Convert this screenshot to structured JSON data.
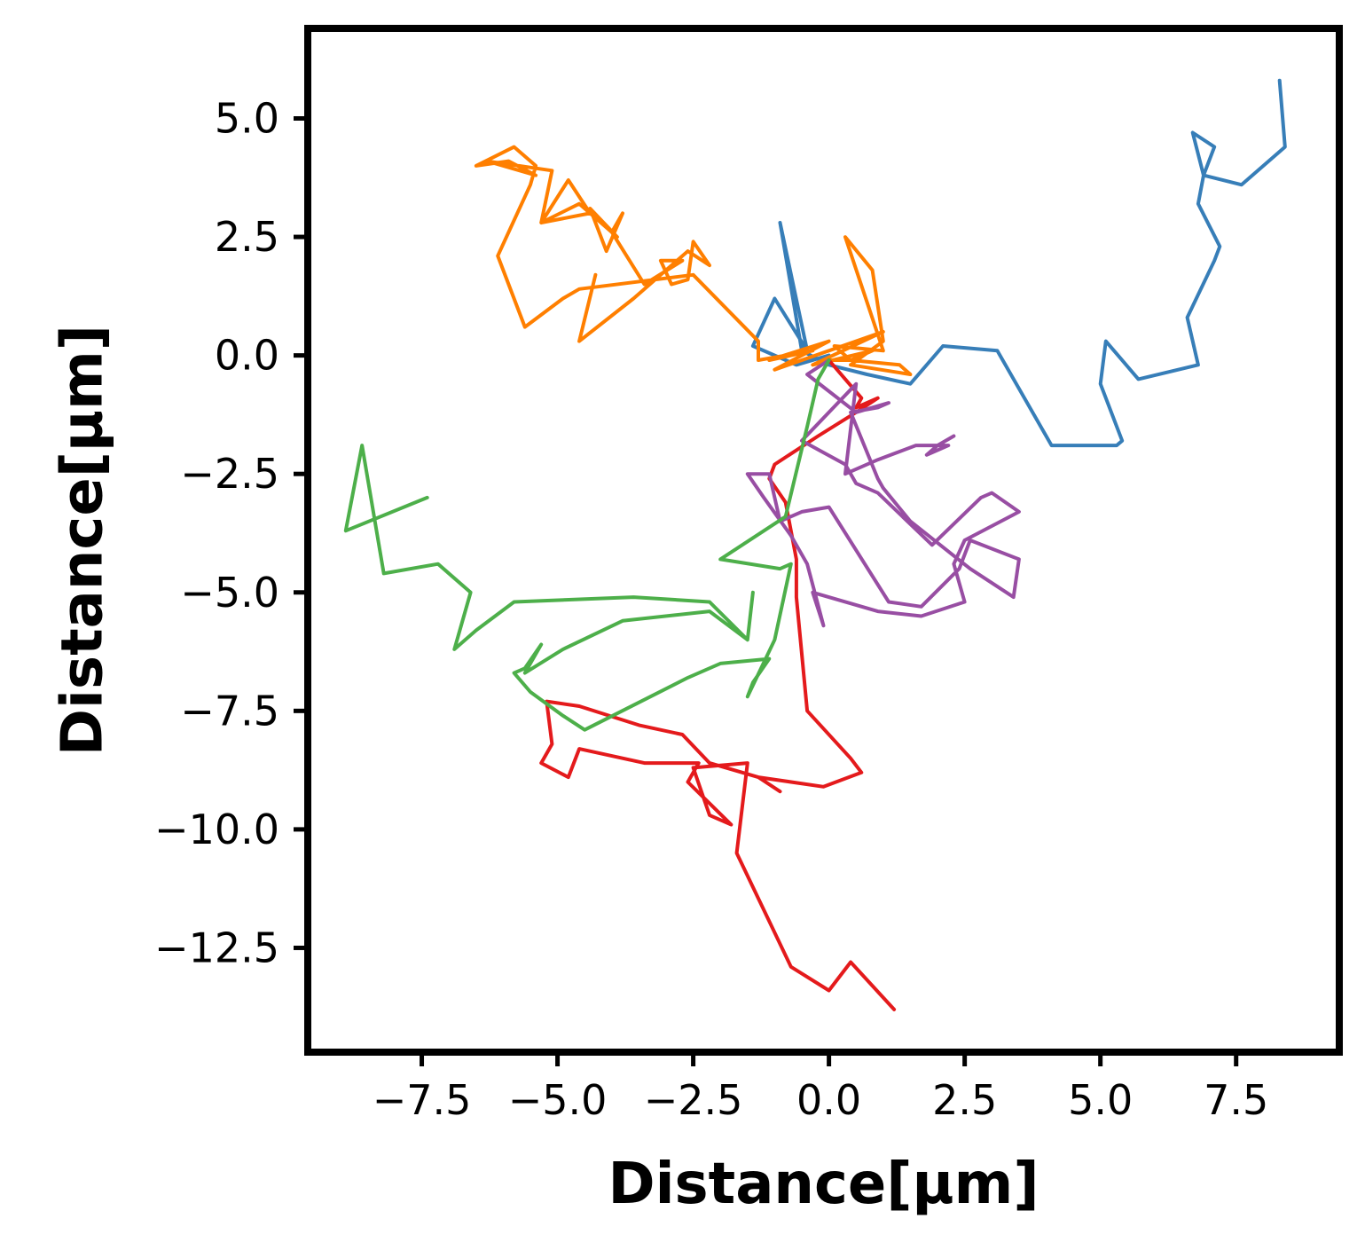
{
  "chart_data": {
    "type": "line",
    "title": "",
    "xlabel": "Distance[μm]",
    "ylabel": "Distance[μm]",
    "xlim": [
      -9.6,
      9.4
    ],
    "ylim": [
      -14.7,
      6.9
    ],
    "xticks": [
      -7.5,
      -5.0,
      -2.5,
      0.0,
      2.5,
      5.0,
      7.5
    ],
    "yticks": [
      5.0,
      2.5,
      0.0,
      -2.5,
      -5.0,
      -7.5,
      -10.0,
      -12.5
    ],
    "xtick_labels": [
      "−7.5",
      "−5.0",
      "−2.5",
      "0.0",
      "2.5",
      "5.0",
      "7.5"
    ],
    "ytick_labels": [
      "5.0",
      "2.5",
      "0.0",
      "−2.5",
      "−5.0",
      "−7.5",
      "−10.0",
      "−12.5"
    ],
    "grid": false,
    "legend": "none",
    "series": [
      {
        "color": "#377eb8",
        "points": [
          [
            8.3,
            5.8
          ],
          [
            8.4,
            4.4
          ],
          [
            7.6,
            3.6
          ],
          [
            6.9,
            3.8
          ],
          [
            7.1,
            4.4
          ],
          [
            6.7,
            4.7
          ],
          [
            6.9,
            3.8
          ],
          [
            6.8,
            3.2
          ],
          [
            7.2,
            2.3
          ],
          [
            7.1,
            2.0
          ],
          [
            6.6,
            0.8
          ],
          [
            6.8,
            -0.2
          ],
          [
            5.7,
            -0.5
          ],
          [
            5.1,
            0.3
          ],
          [
            5.0,
            -0.6
          ],
          [
            5.4,
            -1.8
          ],
          [
            5.3,
            -1.9
          ],
          [
            4.1,
            -1.9
          ],
          [
            3.1,
            0.1
          ],
          [
            2.1,
            0.2
          ],
          [
            1.5,
            -0.6
          ],
          [
            0.7,
            -0.4
          ],
          [
            0.0,
            -0.2
          ],
          [
            -0.5,
            0.1
          ],
          [
            -0.9,
            2.8
          ],
          [
            -0.4,
            0.1
          ],
          [
            -1.0,
            1.2
          ],
          [
            -1.4,
            0.2
          ],
          [
            -0.6,
            -0.2
          ],
          [
            0.0,
            0.0
          ]
        ]
      },
      {
        "color": "#ff7f00",
        "points": [
          [
            -4.3,
            1.7
          ],
          [
            -4.6,
            0.3
          ],
          [
            -3.6,
            1.2
          ],
          [
            -2.6,
            2.2
          ],
          [
            -2.2,
            1.9
          ],
          [
            -2.5,
            2.4
          ],
          [
            -2.6,
            1.6
          ],
          [
            -2.9,
            1.5
          ],
          [
            -3.1,
            2.0
          ],
          [
            -2.7,
            2.0
          ],
          [
            -3.4,
            1.5
          ],
          [
            -4.0,
            2.6
          ],
          [
            -3.8,
            3.0
          ],
          [
            -4.1,
            2.2
          ],
          [
            -4.4,
            3.1
          ],
          [
            -3.9,
            2.5
          ],
          [
            -4.6,
            3.2
          ],
          [
            -5.3,
            2.8
          ],
          [
            -4.4,
            3.0
          ],
          [
            -4.8,
            3.7
          ],
          [
            -5.3,
            2.8
          ],
          [
            -5.1,
            3.9
          ],
          [
            -6.3,
            4.1
          ],
          [
            -5.4,
            3.8
          ],
          [
            -5.9,
            4.1
          ],
          [
            -6.5,
            4.0
          ],
          [
            -5.8,
            4.4
          ],
          [
            -5.4,
            4.0
          ],
          [
            -5.5,
            3.6
          ],
          [
            -6.1,
            2.1
          ],
          [
            -5.6,
            0.6
          ],
          [
            -4.9,
            1.2
          ],
          [
            -4.6,
            1.4
          ],
          [
            -2.5,
            1.7
          ],
          [
            -1.3,
            0.3
          ],
          [
            -1.3,
            -0.1
          ],
          [
            -0.3,
            0.1
          ],
          [
            -1.1,
            -0.1
          ],
          [
            0.0,
            0.3
          ],
          [
            -1.0,
            -0.3
          ],
          [
            1.0,
            0.5
          ],
          [
            -0.3,
            -0.2
          ],
          [
            0.8,
            0.1
          ],
          [
            0.4,
            -0.1
          ],
          [
            0.1,
            0.2
          ],
          [
            1.0,
            0.1
          ],
          [
            0.3,
            2.5
          ],
          [
            0.8,
            1.8
          ],
          [
            1.0,
            0.3
          ],
          [
            0.4,
            -0.2
          ],
          [
            1.5,
            -0.4
          ],
          [
            1.3,
            -0.2
          ],
          [
            0.4,
            -0.1
          ],
          [
            0.0,
            -0.1
          ]
        ]
      },
      {
        "color": "#e41a1c",
        "points": [
          [
            1.2,
            -13.8
          ],
          [
            0.4,
            -12.8
          ],
          [
            0.0,
            -13.4
          ],
          [
            -0.7,
            -12.9
          ],
          [
            -1.7,
            -10.5
          ],
          [
            -1.5,
            -8.6
          ],
          [
            -2.5,
            -8.7
          ],
          [
            -2.2,
            -9.7
          ],
          [
            -1.8,
            -9.9
          ],
          [
            -2.6,
            -9.0
          ],
          [
            -2.4,
            -8.6
          ],
          [
            -3.4,
            -8.6
          ],
          [
            -4.6,
            -8.3
          ],
          [
            -4.8,
            -8.9
          ],
          [
            -5.3,
            -8.6
          ],
          [
            -5.1,
            -8.2
          ],
          [
            -5.2,
            -7.3
          ],
          [
            -4.6,
            -7.4
          ],
          [
            -3.5,
            -7.8
          ],
          [
            -2.7,
            -8.0
          ],
          [
            -2.2,
            -8.6
          ],
          [
            -1.3,
            -8.9
          ],
          [
            -0.9,
            -9.2
          ],
          [
            -1.3,
            -8.9
          ],
          [
            -0.1,
            -9.1
          ],
          [
            0.6,
            -8.8
          ],
          [
            0.4,
            -8.5
          ],
          [
            -0.4,
            -7.5
          ],
          [
            -0.6,
            -5.1
          ],
          [
            -0.6,
            -4.3
          ],
          [
            -0.8,
            -3.1
          ],
          [
            -1.1,
            -2.6
          ],
          [
            -1.0,
            -2.3
          ],
          [
            -0.2,
            -1.7
          ],
          [
            0.5,
            -1.2
          ],
          [
            0.9,
            -0.9
          ],
          [
            0.5,
            -1.1
          ],
          [
            0.6,
            -0.9
          ],
          [
            0.3,
            -0.5
          ],
          [
            0.0,
            -0.1
          ]
        ]
      },
      {
        "color": "#984ea3",
        "points": [
          [
            2.3,
            -1.7
          ],
          [
            2.0,
            -1.9
          ],
          [
            1.8,
            -2.1
          ],
          [
            2.2,
            -1.9
          ],
          [
            1.6,
            -1.9
          ],
          [
            0.9,
            -2.2
          ],
          [
            0.3,
            -2.5
          ],
          [
            0.5,
            -0.6
          ],
          [
            -0.5,
            -1.8
          ],
          [
            0.3,
            -2.3
          ],
          [
            0.5,
            -2.7
          ],
          [
            0.9,
            -2.9
          ],
          [
            1.9,
            -4.0
          ],
          [
            2.8,
            -3.0
          ],
          [
            3.0,
            -2.9
          ],
          [
            3.5,
            -3.3
          ],
          [
            2.5,
            -3.9
          ],
          [
            2.3,
            -4.4
          ],
          [
            2.5,
            -5.2
          ],
          [
            1.7,
            -5.5
          ],
          [
            0.9,
            -5.4
          ],
          [
            -0.3,
            -5.0
          ],
          [
            -0.1,
            -5.7
          ],
          [
            -0.4,
            -4.4
          ],
          [
            -0.7,
            -3.8
          ],
          [
            -1.2,
            -3.0
          ],
          [
            -1.5,
            -2.5
          ],
          [
            -1.1,
            -2.5
          ],
          [
            -0.9,
            -3.5
          ],
          [
            -0.5,
            -3.3
          ],
          [
            0.0,
            -3.2
          ],
          [
            1.1,
            -5.2
          ],
          [
            1.7,
            -5.3
          ],
          [
            2.4,
            -4.5
          ],
          [
            2.6,
            -3.9
          ],
          [
            3.5,
            -4.3
          ],
          [
            3.4,
            -5.1
          ],
          [
            2.6,
            -4.5
          ],
          [
            1.5,
            -3.5
          ],
          [
            1.0,
            -2.8
          ],
          [
            0.9,
            -2.6
          ],
          [
            0.4,
            -1.2
          ],
          [
            0.9,
            -1.1
          ],
          [
            1.1,
            -1.0
          ],
          [
            0.5,
            -1.2
          ],
          [
            -0.4,
            -0.4
          ],
          [
            0.0,
            -0.1
          ]
        ]
      },
      {
        "color": "#4daf4a",
        "points": [
          [
            -7.4,
            -3.0
          ],
          [
            -8.9,
            -3.7
          ],
          [
            -8.6,
            -1.9
          ],
          [
            -8.2,
            -4.6
          ],
          [
            -7.2,
            -4.4
          ],
          [
            -6.6,
            -5.0
          ],
          [
            -6.9,
            -6.2
          ],
          [
            -6.5,
            -5.8
          ],
          [
            -5.8,
            -5.2
          ],
          [
            -3.6,
            -5.1
          ],
          [
            -2.2,
            -5.2
          ],
          [
            -1.5,
            -6.0
          ],
          [
            -1.4,
            -5.0
          ],
          [
            -1.5,
            -6.0
          ],
          [
            -2.2,
            -5.4
          ],
          [
            -3.8,
            -5.6
          ],
          [
            -4.9,
            -6.2
          ],
          [
            -5.6,
            -6.7
          ],
          [
            -5.3,
            -6.1
          ],
          [
            -5.6,
            -6.6
          ],
          [
            -5.8,
            -6.7
          ],
          [
            -5.5,
            -7.1
          ],
          [
            -4.9,
            -7.6
          ],
          [
            -4.5,
            -7.9
          ],
          [
            -2.6,
            -6.8
          ],
          [
            -2.0,
            -6.5
          ],
          [
            -1.1,
            -6.4
          ],
          [
            -1.4,
            -6.9
          ],
          [
            -1.5,
            -7.2
          ],
          [
            -1.0,
            -6.0
          ],
          [
            -0.7,
            -4.4
          ],
          [
            -0.9,
            -4.5
          ],
          [
            -2.0,
            -4.3
          ],
          [
            -0.8,
            -3.4
          ],
          [
            -0.4,
            -1.5
          ],
          [
            -0.2,
            -0.5
          ],
          [
            0.0,
            -0.1
          ]
        ]
      }
    ]
  }
}
